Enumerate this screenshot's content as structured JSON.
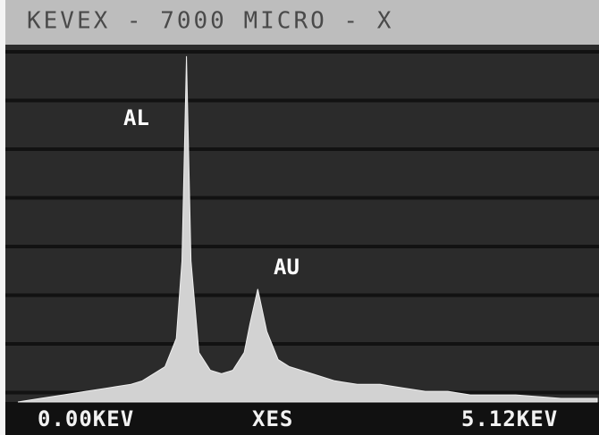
{
  "chart_data": {
    "type": "area",
    "title": "KEVEX - 7000 MICRO - X",
    "x_start_label": "0.00KEV",
    "x_center_label": "XES",
    "x_end_label": "5.12KEV",
    "annotations": [
      "AL",
      "AU"
    ],
    "xlim": [
      0,
      5.12
    ],
    "ylim": [
      0,
      100
    ],
    "color": "#d2d2d2",
    "x": [
      0.0,
      0.2,
      0.4,
      0.6,
      0.8,
      1.0,
      1.1,
      1.2,
      1.3,
      1.4,
      1.45,
      1.49,
      1.53,
      1.6,
      1.7,
      1.8,
      1.9,
      2.0,
      2.05,
      2.12,
      2.2,
      2.3,
      2.4,
      2.6,
      2.8,
      3.0,
      3.2,
      3.4,
      3.6,
      3.8,
      4.0,
      4.4,
      4.8,
      5.12
    ],
    "values": [
      0,
      1,
      2,
      3,
      4,
      5,
      6,
      8,
      10,
      18,
      40,
      98,
      40,
      14,
      9,
      8,
      9,
      14,
      22,
      32,
      20,
      12,
      10,
      8,
      6,
      5,
      5,
      4,
      3,
      3,
      2,
      2,
      1,
      1
    ]
  }
}
